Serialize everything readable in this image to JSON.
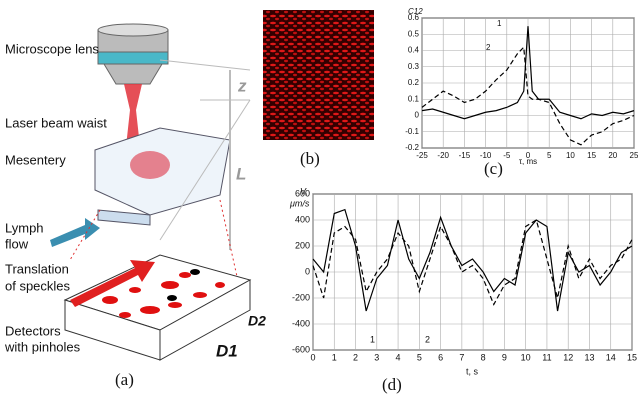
{
  "diagram": {
    "labels": {
      "lens": "Microscope lens",
      "waist": "Laser beam waist",
      "mesentery": "Mesentery",
      "lymph": [
        "Lymph",
        "flow"
      ],
      "translation": [
        "Translation",
        "of speckles"
      ],
      "detectors": [
        "Detectors",
        "with pinholes"
      ],
      "z": "z",
      "L": "L",
      "d1": "D1",
      "d2": "D2"
    },
    "panels": [
      "(a)",
      "(b)",
      "(c)",
      "(d)"
    ]
  },
  "chart_data": [
    {
      "type": "line",
      "y_label": "C12",
      "x_label": "τ, ms",
      "annotations": [
        "1",
        "2"
      ],
      "x": [
        -25,
        -22.5,
        -20,
        -17.5,
        -15,
        -12.5,
        -10,
        -7.5,
        -5,
        -2.5,
        -1,
        0,
        1,
        2.5,
        5,
        7.5,
        10,
        12.5,
        15,
        17.5,
        20,
        22.5,
        25
      ],
      "series": [
        {
          "name": "1",
          "color": "#000",
          "dash": false,
          "values": [
            0.03,
            0.04,
            0.02,
            0.0,
            -0.02,
            0.0,
            0.02,
            0.03,
            0.05,
            0.08,
            0.15,
            0.55,
            0.15,
            0.1,
            0.1,
            0.02,
            0.0,
            -0.02,
            0.01,
            0.0,
            0.02,
            0.01,
            0.03
          ]
        },
        {
          "name": "2",
          "color": "#000",
          "dash": true,
          "values": [
            0.05,
            0.1,
            0.15,
            0.12,
            0.08,
            0.1,
            0.15,
            0.22,
            0.28,
            0.38,
            0.42,
            0.12,
            0.1,
            0.1,
            0.08,
            -0.05,
            -0.15,
            -0.18,
            -0.12,
            -0.1,
            -0.05,
            -0.03,
            0.0
          ]
        }
      ],
      "xlim": [
        -25,
        25
      ],
      "xticks": [
        -25,
        -20,
        -15,
        -10,
        -5,
        0,
        5,
        10,
        15,
        20,
        25
      ],
      "ylim": [
        -0.2,
        0.6
      ],
      "yticks": [
        -0.2,
        -0.1,
        0,
        0.1,
        0.2,
        0.3,
        0.4,
        0.5,
        0.6
      ],
      "grid": true
    },
    {
      "type": "line",
      "y_label": [
        "V,",
        "μm/s"
      ],
      "x_label": "t, s",
      "annotations": [
        "1",
        "2"
      ],
      "x": [
        0,
        0.5,
        1,
        1.5,
        2,
        2.5,
        3,
        3.5,
        4,
        4.5,
        5,
        5.5,
        6,
        6.5,
        7,
        7.5,
        8,
        8.5,
        9,
        9.5,
        10,
        10.5,
        11,
        11.5,
        12,
        12.5,
        13,
        13.5,
        14,
        14.5,
        15
      ],
      "series": [
        {
          "name": "1",
          "color": "#000",
          "dash": false,
          "values": [
            100,
            0,
            450,
            480,
            200,
            -300,
            -50,
            50,
            400,
            100,
            -50,
            150,
            420,
            200,
            50,
            100,
            0,
            -150,
            -50,
            -100,
            300,
            400,
            350,
            -300,
            150,
            0,
            50,
            -100,
            0,
            150,
            200
          ]
        },
        {
          "name": "2",
          "color": "#000",
          "dash": true,
          "values": [
            50,
            -200,
            300,
            350,
            250,
            -150,
            0,
            100,
            300,
            200,
            -150,
            100,
            350,
            200,
            0,
            50,
            -50,
            -250,
            -100,
            -50,
            350,
            400,
            100,
            -200,
            200,
            -50,
            100,
            -50,
            50,
            100,
            250
          ]
        }
      ],
      "xlim": [
        0,
        15
      ],
      "xticks": [
        0,
        1,
        2,
        3,
        4,
        5,
        6,
        7,
        8,
        9,
        10,
        11,
        12,
        13,
        14,
        15
      ],
      "ylim": [
        -600,
        600
      ],
      "yticks": [
        -600,
        -400,
        -200,
        0,
        200,
        400,
        600
      ],
      "grid": true
    }
  ]
}
